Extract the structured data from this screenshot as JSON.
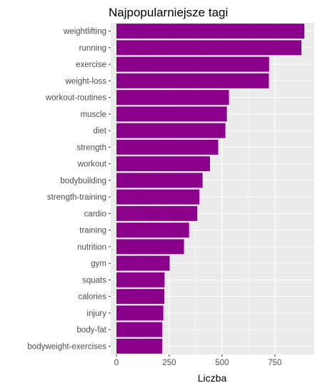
{
  "chart_data": {
    "type": "bar",
    "orientation": "horizontal",
    "title": "Najpopularniejsze tagi",
    "xlabel": "Liczba",
    "ylabel": "",
    "categories": [
      "weightlifting",
      "running",
      "exercise",
      "weight-loss",
      "workout-routines",
      "muscle",
      "diet",
      "strength",
      "workout",
      "bodybuilding",
      "strength-training",
      "cardio",
      "training",
      "nutrition",
      "gym",
      "squats",
      "calories",
      "injury",
      "body-fat",
      "bodyweight-exercises"
    ],
    "values": [
      890,
      876,
      723,
      722,
      533,
      523,
      516,
      482,
      443,
      408,
      393,
      383,
      344,
      320,
      252,
      228,
      227,
      222,
      217,
      217
    ],
    "xlim": [
      -27,
      937
    ],
    "xticks": [
      0,
      250,
      500,
      750
    ],
    "xtick_labels": [
      "0",
      "250",
      "500",
      "750"
    ],
    "bar_color": "#8B008B",
    "panel_color": "#EBEBEB",
    "grid": true
  }
}
